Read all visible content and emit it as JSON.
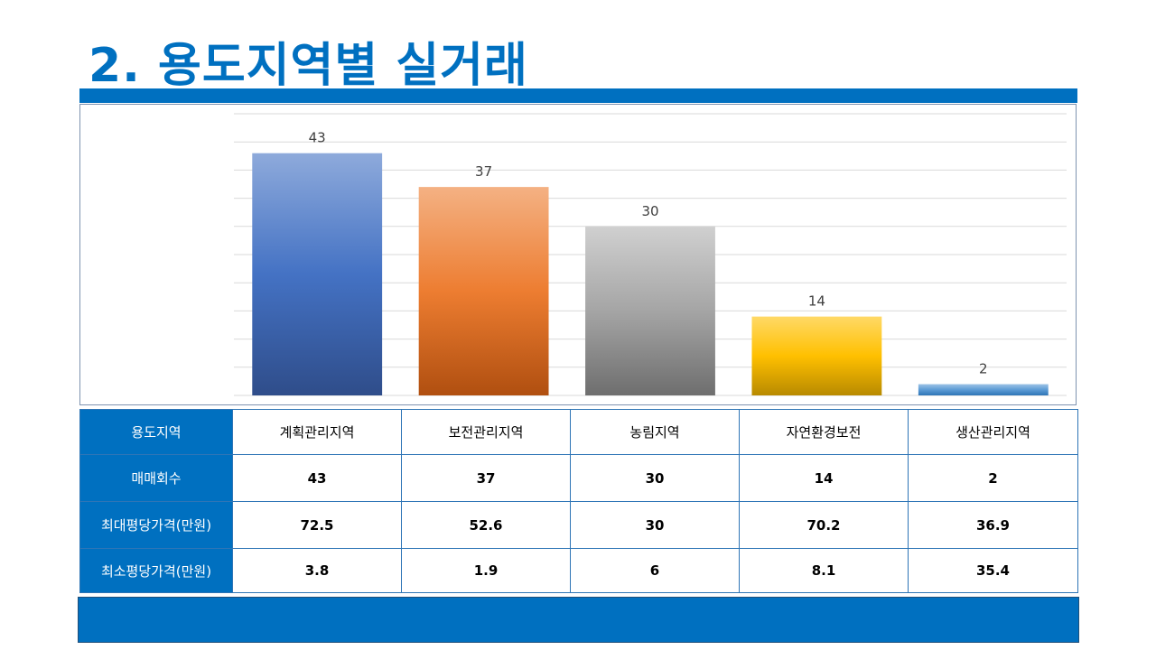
{
  "page": {
    "title": "2. 용도지역별 실거래"
  },
  "colors": {
    "accent": "#0070c0"
  },
  "chart_data": {
    "type": "bar",
    "categories": [
      "계획관리지역",
      "보전관리지역",
      "농림지역",
      "자연환경보전",
      "생산관리지역"
    ],
    "values": [
      43,
      37,
      30,
      14,
      2
    ],
    "ylim": [
      0,
      50
    ],
    "grid": true,
    "data_labels": true,
    "bar_colors": [
      [
        "#8eaadb",
        "#4472c4",
        "#2f4d8a"
      ],
      [
        "#f4b183",
        "#ed7d31",
        "#b04f10"
      ],
      [
        "#d0d0d0",
        "#a5a5a5",
        "#6e6e6e"
      ],
      [
        "#ffd966",
        "#ffc000",
        "#b88a00"
      ],
      [
        "#9dc3e6",
        "#5b9bd5",
        "#2e75b6"
      ]
    ]
  },
  "table": {
    "row_headers": [
      "용도지역",
      "매매회수",
      "최대평당가격(만원)",
      "최소평당가격(만원)"
    ],
    "categories": [
      "계획관리지역",
      "보전관리지역",
      "농림지역",
      "자연환경보전",
      "생산관리지역"
    ],
    "sales_count": [
      "43",
      "37",
      "30",
      "14",
      "2"
    ],
    "max_price": [
      "72.5",
      "52.6",
      "30",
      "70.2",
      "36.9"
    ],
    "min_price": [
      "3.8",
      "1.9",
      "6",
      "8.1",
      "35.4"
    ]
  }
}
